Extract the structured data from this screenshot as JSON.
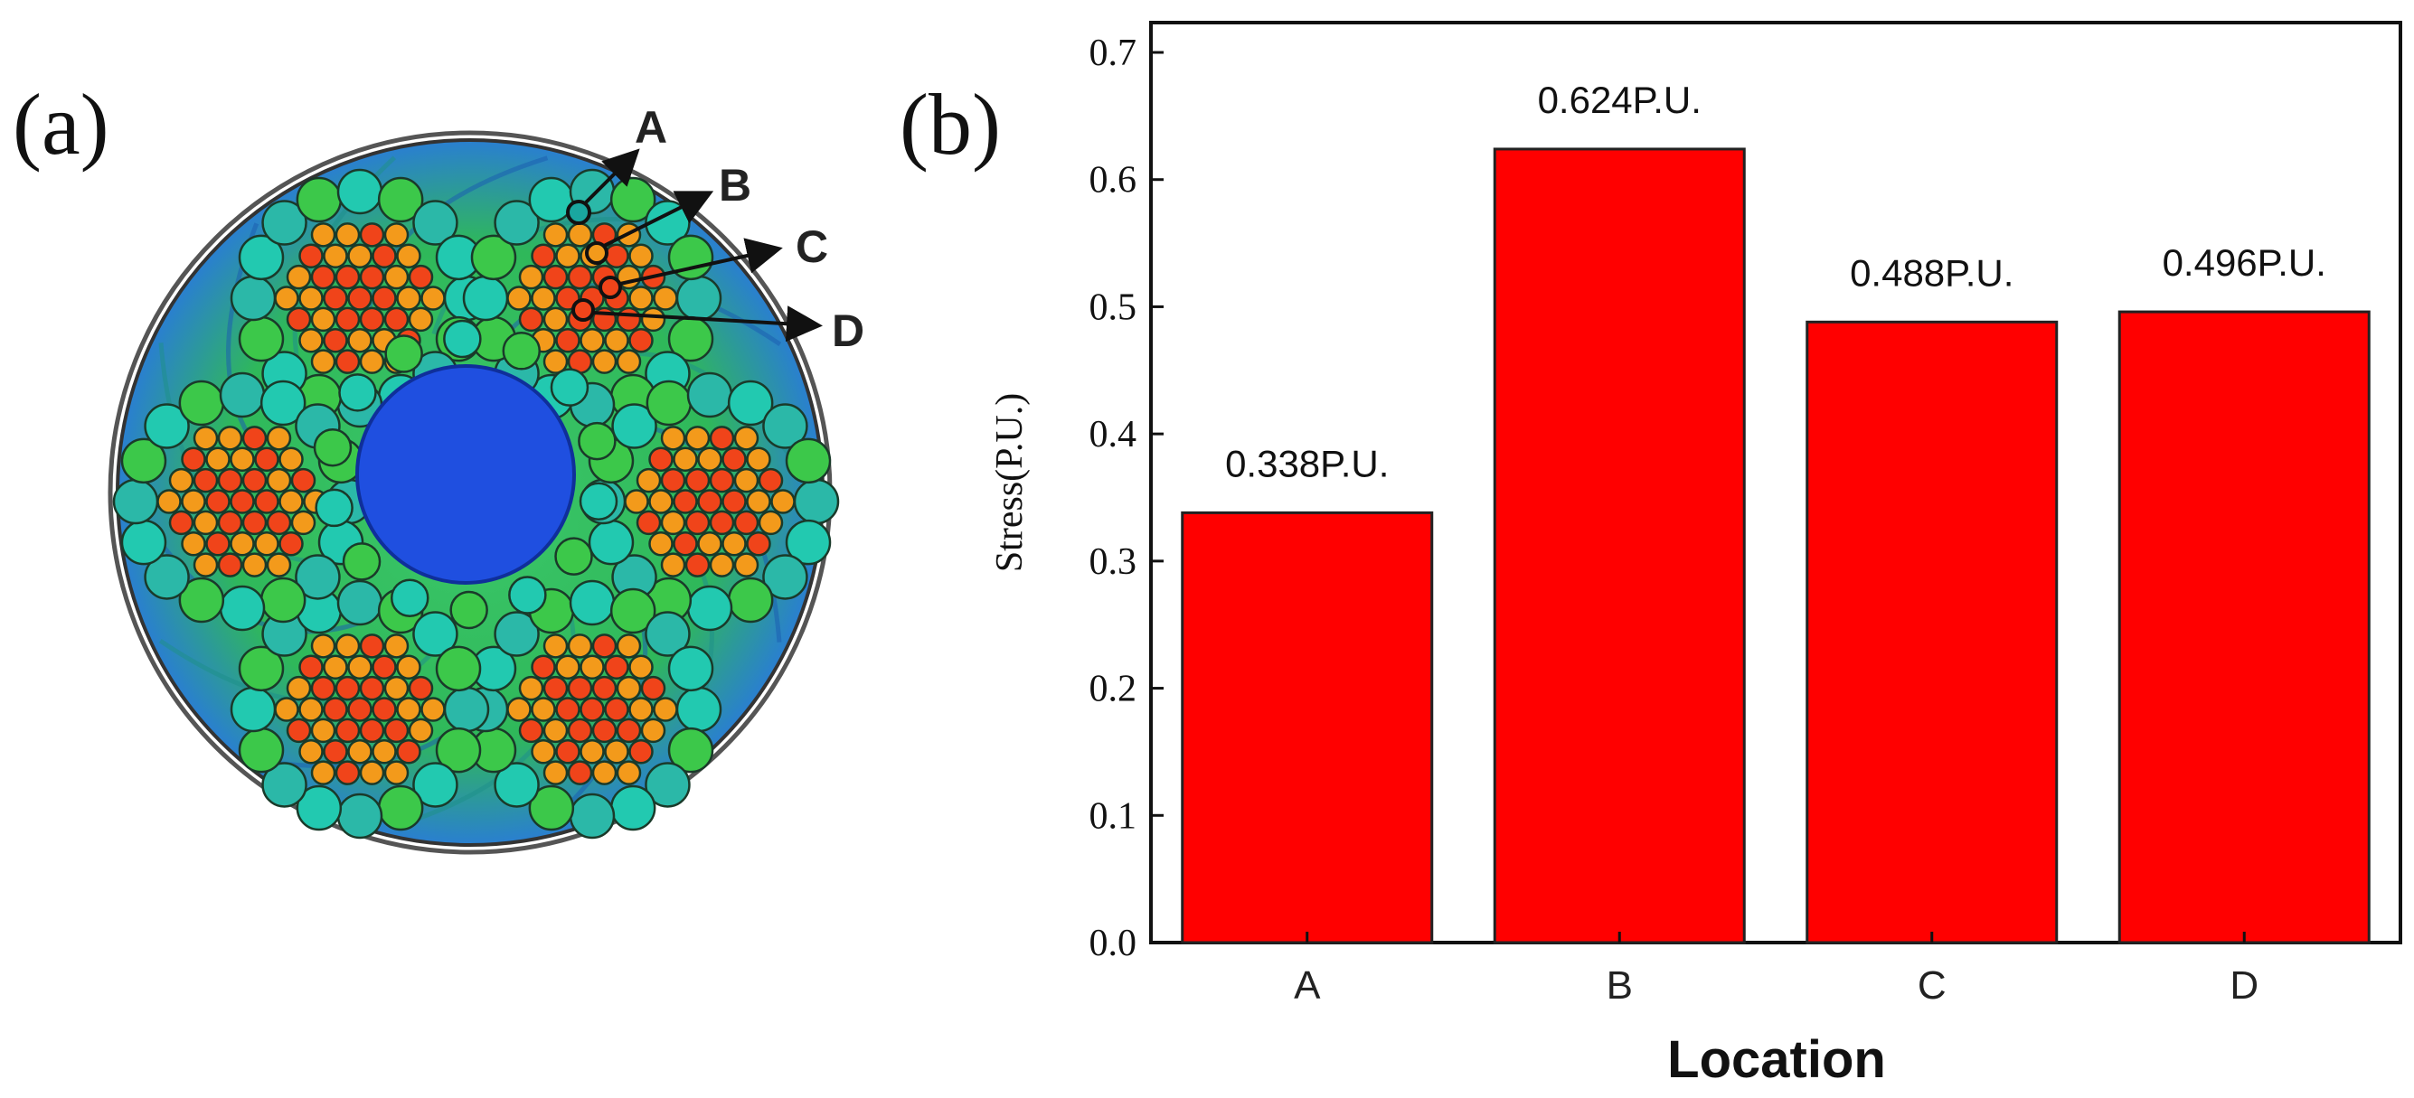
{
  "panel_a": {
    "label": "(a)",
    "points": [
      "A",
      "B",
      "C",
      "D"
    ],
    "colors": {
      "outer": "#2fb85a",
      "core": "#1f4fe0",
      "wire_cool": "#22c9b0",
      "wire_green": "#3cc84a",
      "wire_orange": "#f39a1b",
      "wire_red": "#f0441a"
    }
  },
  "panel_b": {
    "label": "(b)"
  },
  "chart_data": {
    "type": "bar",
    "categories": [
      "A",
      "B",
      "C",
      "D"
    ],
    "values": [
      0.338,
      0.624,
      0.488,
      0.496
    ],
    "data_labels": [
      "0.338P.U.",
      "0.624P.U.",
      "0.488P.U.",
      "0.496P.U."
    ],
    "title": "",
    "xlabel": "Location",
    "ylabel": "Stress(P.U.)",
    "ylim": [
      0.0,
      0.7
    ],
    "yticks": [
      "0.0",
      "0.1",
      "0.2",
      "0.3",
      "0.4",
      "0.5",
      "0.6",
      "0.7"
    ],
    "bar_color": "#ff0000",
    "grid": false
  }
}
